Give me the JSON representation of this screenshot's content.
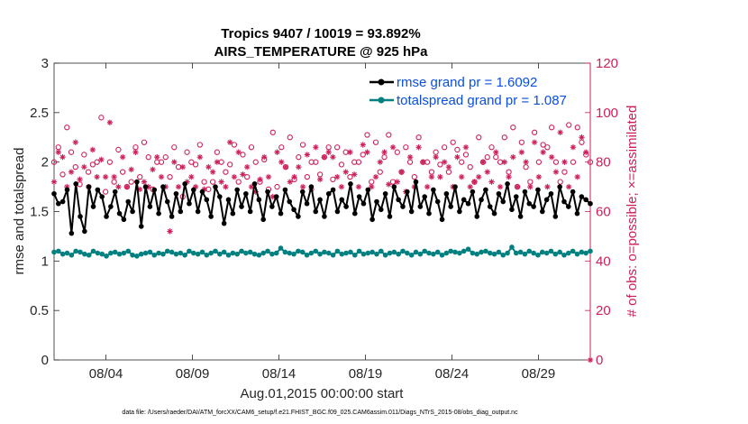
{
  "chart_data": {
    "type": "line",
    "title": "Tropics 9407 / 10019 = 93.892%",
    "subtitle": "AIRS_TEMPERATURE @ 925 hPa",
    "xlabel": "Aug.01,2015 00:00:00 start",
    "ylabel": "rmse and totalspread",
    "ylabel_right": "# of obs: o=possible; ×=assimilated",
    "footnote": "data file: /Users/raeder/DAI/ATM_forcXX/CAM6_setup/f.e21.FHIST_BGC.f09_025.CAM6assim.011/Diags_NTrS_2015-08/obs_diag_output.nc",
    "xlim": [
      1,
      32
    ],
    "ylim": [
      0,
      3
    ],
    "ylim_right": [
      0,
      120
    ],
    "x_ticks": [
      4,
      9,
      14,
      19,
      24,
      29
    ],
    "x_tick_labels": [
      "08/04",
      "08/09",
      "08/14",
      "08/19",
      "08/24",
      "08/29"
    ],
    "y_ticks": [
      0,
      0.5,
      1,
      1.5,
      2,
      2.5,
      3
    ],
    "y_tick_labels": [
      "0",
      "0.5",
      "1",
      "1.5",
      "2",
      "2.5",
      "3"
    ],
    "y_ticks_right": [
      0,
      20,
      40,
      60,
      80,
      100,
      120
    ],
    "y_tick_labels_right": [
      "0",
      "20",
      "40",
      "60",
      "80",
      "100",
      "120"
    ],
    "legend_position": "top-right",
    "series": [
      {
        "name": "rmse grand pr = 1.6092",
        "color": "#000000",
        "marker": "filled-circle",
        "axis": "left",
        "values": [
          1.68,
          1.58,
          1.6,
          1.72,
          1.28,
          1.78,
          1.45,
          1.3,
          1.75,
          1.55,
          1.72,
          1.65,
          1.45,
          1.55,
          1.7,
          1.48,
          1.42,
          1.6,
          1.5,
          1.8,
          1.35,
          1.75,
          1.55,
          1.72,
          1.48,
          1.75,
          1.6,
          1.45,
          1.68,
          1.5,
          1.78,
          1.58,
          1.72,
          1.5,
          1.7,
          1.62,
          1.45,
          1.75,
          1.65,
          1.38,
          1.62,
          1.48,
          1.72,
          1.55,
          1.68,
          1.5,
          1.78,
          1.62,
          1.42,
          1.7,
          1.55,
          1.65,
          1.48,
          1.72,
          1.6,
          1.52,
          1.45,
          1.7,
          1.58,
          1.75,
          1.5,
          1.62,
          1.45,
          1.68,
          1.72,
          1.5,
          1.62,
          1.55,
          1.78,
          1.48,
          1.65,
          1.58,
          1.72,
          1.42,
          1.6,
          1.52,
          1.68,
          1.45,
          1.75,
          1.62,
          1.55,
          1.7,
          1.5,
          1.8,
          1.55,
          1.65,
          1.48,
          1.72,
          1.6,
          1.42,
          1.68,
          1.55,
          1.75,
          1.5,
          1.62,
          1.58,
          1.7,
          1.45,
          1.62,
          1.72,
          1.55,
          1.48,
          1.68,
          1.6,
          1.78,
          1.52,
          1.65,
          1.45,
          1.7,
          1.58,
          1.55,
          1.72,
          1.5,
          1.62,
          1.68,
          1.45,
          1.75,
          1.6,
          1.55,
          1.7,
          1.48,
          1.65,
          1.62,
          1.58
        ]
      },
      {
        "name": "totalspread grand pr = 1.087",
        "color": "#008080",
        "marker": "filled-circle",
        "axis": "left",
        "values": [
          1.09,
          1.1,
          1.07,
          1.08,
          1.06,
          1.1,
          1.09,
          1.07,
          1.06,
          1.1,
          1.08,
          1.07,
          1.05,
          1.08,
          1.09,
          1.07,
          1.08,
          1.1,
          1.06,
          1.05,
          1.07,
          1.08,
          1.09,
          1.06,
          1.08,
          1.07,
          1.1,
          1.09,
          1.07,
          1.08,
          1.06,
          1.1,
          1.08,
          1.07,
          1.09,
          1.06,
          1.08,
          1.1,
          1.07,
          1.09,
          1.06,
          1.08,
          1.07,
          1.1,
          1.08,
          1.09,
          1.07,
          1.06,
          1.08,
          1.1,
          1.07,
          1.08,
          1.13,
          1.09,
          1.08,
          1.07,
          1.1,
          1.09,
          1.06,
          1.08,
          1.1,
          1.07,
          1.09,
          1.08,
          1.06,
          1.1,
          1.07,
          1.08,
          1.09,
          1.06,
          1.1,
          1.07,
          1.08,
          1.09,
          1.07,
          1.1,
          1.06,
          1.08,
          1.09,
          1.07,
          1.1,
          1.08,
          1.06,
          1.09,
          1.07,
          1.1,
          1.08,
          1.07,
          1.09,
          1.06,
          1.08,
          1.1,
          1.09,
          1.08,
          1.1,
          1.12,
          1.08,
          1.07,
          1.09,
          1.1,
          1.08,
          1.07,
          1.09,
          1.06,
          1.08,
          1.14,
          1.08,
          1.09,
          1.07,
          1.1,
          1.08,
          1.06,
          1.09,
          1.08,
          1.1,
          1.07,
          1.09,
          1.06,
          1.08,
          1.1,
          1.07,
          1.09,
          1.08,
          1.1
        ]
      },
      {
        "name": "possible",
        "color": "#cc1f5c",
        "marker": "open-circle",
        "axis": "right",
        "values": [
          80,
          86,
          75,
          94,
          84,
          78,
          71,
          83,
          76,
          79,
          80,
          98,
          68,
          80,
          72,
          85,
          76,
          70,
          72,
          86,
          74,
          88,
          82,
          69,
          80,
          80,
          82,
          74,
          86,
          78,
          66,
          84,
          80,
          79,
          87,
          72,
          69,
          72,
          84,
          80,
          76,
          79,
          87,
          72,
          83,
          74,
          86,
          80,
          72,
          81,
          69,
          92,
          70,
          86,
          78,
          90,
          73,
          82,
          87,
          74,
          80,
          80,
          75,
          82,
          86,
          73,
          86,
          79,
          84,
          74,
          80,
          80,
          83,
          91,
          72,
          88,
          76,
          82,
          91,
          72,
          84,
          76,
          86,
          80,
          74,
          90,
          80,
          80,
          76,
          84,
          79,
          86,
          76,
          88,
          85,
          80,
          83,
          78,
          72,
          90,
          80,
          82,
          86,
          82,
          80,
          90,
          76,
          94,
          70,
          88,
          78,
          72,
          92,
          80,
          87,
          86,
          94,
          80,
          72,
          76,
          95,
          80,
          94,
          88,
          83,
          80
        ]
      },
      {
        "name": "assimilated",
        "color": "#cc1f5c",
        "marker": "asterisk",
        "axis": "right",
        "values": [
          72,
          84,
          82,
          70,
          76,
          88,
          73,
          78,
          70,
          85,
          74,
          81,
          74,
          96,
          74,
          70,
          82,
          70,
          77,
          84,
          69,
          72,
          70,
          77,
          82,
          74,
          70,
          52,
          80,
          70,
          78,
          72,
          74,
          70,
          82,
          69,
          78,
          76,
          80,
          72,
          70,
          88,
          74,
          84,
          75,
          78,
          70,
          68,
          73,
          82,
          74,
          66,
          84,
          80,
          78,
          72,
          74,
          78,
          70,
          83,
          69,
          86,
          73,
          82,
          84,
          82,
          74,
          70,
          76,
          84,
          75,
          70,
          87,
          84,
          70,
          74,
          80,
          84,
          71,
          86,
          72,
          76,
          68,
          82,
          70,
          86,
          80,
          70,
          74,
          82,
          74,
          80,
          78,
          70,
          82,
          74,
          86,
          70,
          72,
          74,
          80,
          76,
          72,
          84,
          70,
          80,
          74,
          82,
          70,
          84,
          80,
          70,
          88,
          74,
          84,
          70,
          82,
          76,
          92,
          80,
          70,
          86,
          74,
          90,
          84,
          0
        ]
      }
    ]
  }
}
